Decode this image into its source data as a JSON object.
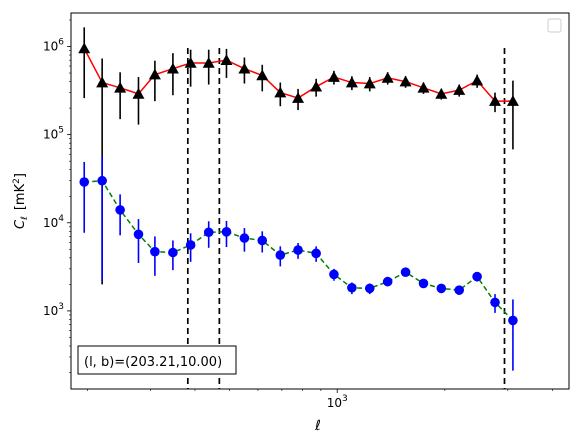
{
  "chart_data": {
    "type": "scatter",
    "xscale": "log",
    "yscale": "log",
    "xlim": [
      180,
      4450
    ],
    "ylim": [
      130,
      2400000
    ],
    "xlabel": "ℓ",
    "ylabel_symbol": "C",
    "ylabel_subscript": "ℓ",
    "ylabel_unit": "[mK",
    "ylabel_unit_sup": "2",
    "ylabel_unit_close": "]",
    "xticks": [
      {
        "value": 1000,
        "base": "10",
        "exp": "3"
      }
    ],
    "yticks": [
      {
        "value": 1000,
        "base": "10",
        "exp": "3"
      },
      {
        "value": 10000,
        "base": "10",
        "exp": "4"
      },
      {
        "value": 100000,
        "base": "10",
        "exp": "5"
      },
      {
        "value": 1000000,
        "base": "10",
        "exp": "6"
      }
    ],
    "vlines": [
      382,
      468,
      2937
    ],
    "annotation": "(l, b)=(203.21,10.00)",
    "legend_position": "top-right",
    "series": [
      {
        "marker": "triangle",
        "marker_color": "#000000",
        "line_color": "#ff0000",
        "line_style": "solid",
        "points": [
          {
            "x": 196,
            "y": 950000,
            "lo": 260000,
            "hi": 1650000
          },
          {
            "x": 220,
            "y": 390000,
            "lo": 2000,
            "hi": 730000
          },
          {
            "x": 247,
            "y": 340000,
            "lo": 150000,
            "hi": 510000
          },
          {
            "x": 278,
            "y": 290000,
            "lo": 130000,
            "hi": 450000
          },
          {
            "x": 309,
            "y": 480000,
            "lo": 240000,
            "hi": 690000
          },
          {
            "x": 347,
            "y": 560000,
            "lo": 280000,
            "hi": 840000
          },
          {
            "x": 389,
            "y": 650000,
            "lo": 350000,
            "hi": 920000
          },
          {
            "x": 437,
            "y": 650000,
            "lo": 370000,
            "hi": 920000
          },
          {
            "x": 490,
            "y": 700000,
            "lo": 440000,
            "hi": 940000
          },
          {
            "x": 550,
            "y": 560000,
            "lo": 380000,
            "hi": 750000
          },
          {
            "x": 617,
            "y": 470000,
            "lo": 310000,
            "hi": 620000
          },
          {
            "x": 693,
            "y": 300000,
            "lo": 210000,
            "hi": 390000
          },
          {
            "x": 777,
            "y": 260000,
            "lo": 190000,
            "hi": 330000
          },
          {
            "x": 873,
            "y": 350000,
            "lo": 270000,
            "hi": 430000
          },
          {
            "x": 979,
            "y": 450000,
            "lo": 370000,
            "hi": 530000
          },
          {
            "x": 1099,
            "y": 390000,
            "lo": 320000,
            "hi": 460000
          },
          {
            "x": 1233,
            "y": 380000,
            "lo": 310000,
            "hi": 450000
          },
          {
            "x": 1384,
            "y": 440000,
            "lo": 370000,
            "hi": 510000
          },
          {
            "x": 1553,
            "y": 400000,
            "lo": 340000,
            "hi": 460000
          },
          {
            "x": 1743,
            "y": 340000,
            "lo": 290000,
            "hi": 390000
          },
          {
            "x": 1955,
            "y": 290000,
            "lo": 250000,
            "hi": 330000
          },
          {
            "x": 2194,
            "y": 320000,
            "lo": 270000,
            "hi": 370000
          },
          {
            "x": 2462,
            "y": 410000,
            "lo": 340000,
            "hi": 480000
          },
          {
            "x": 2763,
            "y": 240000,
            "lo": 180000,
            "hi": 300000
          },
          {
            "x": 3101,
            "y": 240000,
            "lo": 68000,
            "hi": 410000
          }
        ]
      },
      {
        "marker": "circle",
        "marker_color": "#0000ff",
        "line_color": "#008000",
        "line_style": "dashed",
        "points": [
          {
            "x": 196,
            "y": 29000,
            "lo": 7700,
            "hi": 49000
          },
          {
            "x": 220,
            "y": 30000,
            "lo": 2200,
            "hi": 57000
          },
          {
            "x": 247,
            "y": 14000,
            "lo": 7200,
            "hi": 21000
          },
          {
            "x": 278,
            "y": 7400,
            "lo": 3500,
            "hi": 11000
          },
          {
            "x": 309,
            "y": 4700,
            "lo": 2500,
            "hi": 7000
          },
          {
            "x": 347,
            "y": 4600,
            "lo": 2900,
            "hi": 6300
          },
          {
            "x": 389,
            "y": 5600,
            "lo": 3600,
            "hi": 7600
          },
          {
            "x": 437,
            "y": 7800,
            "lo": 5200,
            "hi": 10400
          },
          {
            "x": 490,
            "y": 7900,
            "lo": 5300,
            "hi": 10500
          },
          {
            "x": 550,
            "y": 6700,
            "lo": 4700,
            "hi": 8700
          },
          {
            "x": 617,
            "y": 6300,
            "lo": 4600,
            "hi": 8000
          },
          {
            "x": 693,
            "y": 4300,
            "lo": 3200,
            "hi": 5400
          },
          {
            "x": 777,
            "y": 4900,
            "lo": 3900,
            "hi": 5900
          },
          {
            "x": 873,
            "y": 4500,
            "lo": 3600,
            "hi": 5400
          },
          {
            "x": 979,
            "y": 2600,
            "lo": 2200,
            "hi": 3000
          },
          {
            "x": 1099,
            "y": 1830,
            "lo": 1550,
            "hi": 2100
          },
          {
            "x": 1233,
            "y": 1800,
            "lo": 1550,
            "hi": 2050
          },
          {
            "x": 1384,
            "y": 2150,
            "lo": 1900,
            "hi": 2400
          },
          {
            "x": 1553,
            "y": 2750,
            "lo": 2450,
            "hi": 3050
          },
          {
            "x": 1743,
            "y": 2050,
            "lo": 1850,
            "hi": 2250
          },
          {
            "x": 1955,
            "y": 1800,
            "lo": 1620,
            "hi": 1980
          },
          {
            "x": 2194,
            "y": 1720,
            "lo": 1520,
            "hi": 1920
          },
          {
            "x": 2462,
            "y": 2450,
            "lo": 2150,
            "hi": 2750
          },
          {
            "x": 2763,
            "y": 1250,
            "lo": 950,
            "hi": 1550
          },
          {
            "x": 3101,
            "y": 780,
            "lo": 210,
            "hi": 1350
          }
        ]
      }
    ]
  }
}
